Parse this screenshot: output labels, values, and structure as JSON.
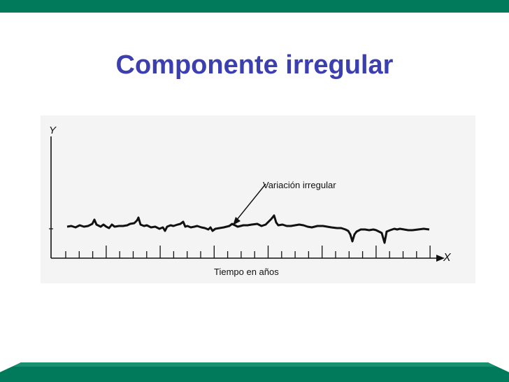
{
  "slide": {
    "title": "Componente irregular"
  },
  "figure": {
    "y_axis_label": "Y",
    "x_axis_label": "X",
    "x_axis_title": "Tiempo en años",
    "annotation": "Variación irregular"
  },
  "colors": {
    "header_bar": "#007a5a",
    "footer_band": "#007a5a",
    "title": "#3b3fb0",
    "figure_background": "#f4f4f4",
    "line": "#111111"
  }
}
